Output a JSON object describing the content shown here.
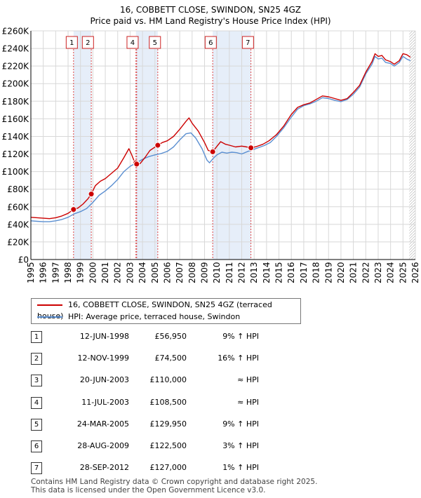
{
  "title": "16, COBBETT CLOSE, SWINDON, SN25 4GZ",
  "subtitle": "Price paid vs. HM Land Registry's House Price Index (HPI)",
  "colors": {
    "property": "#cc0000",
    "hpi": "#5b8fd1",
    "band": "#e6eef9",
    "grid": "#d8d8d8",
    "vline": "#dd4444"
  },
  "chart_data": {
    "type": "line",
    "title": "16, COBBETT CLOSE, SWINDON, SN25 4GZ",
    "subtitle": "Price paid vs. HM Land Registry's House Price Index (HPI)",
    "xlim": [
      1995,
      2026
    ],
    "ylim": [
      0,
      260000
    ],
    "y_ticks": [
      0,
      20000,
      40000,
      60000,
      80000,
      100000,
      120000,
      140000,
      160000,
      180000,
      200000,
      220000,
      240000,
      260000
    ],
    "y_tick_labels": [
      "£0",
      "£20K",
      "£40K",
      "£60K",
      "£80K",
      "£100K",
      "£120K",
      "£140K",
      "£160K",
      "£180K",
      "£200K",
      "£220K",
      "£240K",
      "£260K"
    ],
    "x_ticks": [
      1995,
      1996,
      1997,
      1998,
      1999,
      2000,
      2001,
      2002,
      2003,
      2004,
      2005,
      2006,
      2007,
      2008,
      2009,
      2010,
      2011,
      2012,
      2013,
      2014,
      2015,
      2016,
      2017,
      2018,
      2019,
      2020,
      2021,
      2022,
      2023,
      2024,
      2025,
      2026
    ],
    "x_tick_labels": [
      "1995",
      "1996",
      "1997",
      "1998",
      "1999",
      "2000",
      "2001",
      "2002",
      "2003",
      "2004",
      "2005",
      "2006",
      "2007",
      "2008",
      "2009",
      "2010",
      "2011",
      "2012",
      "2013",
      "2014",
      "2015",
      "2016",
      "2017",
      "2018",
      "2019",
      "2020",
      "2021",
      "2022",
      "2023",
      "2024",
      "2025",
      "2026"
    ],
    "shaded_bands": [
      [
        1998.44,
        1999.87
      ],
      [
        2003.47,
        2005.23
      ],
      [
        2009.66,
        2012.74
      ]
    ],
    "series": [
      {
        "name": "16, COBBETT CLOSE, SWINDON, SN25 4GZ (terraced house)",
        "points": [
          [
            1995.0,
            48000
          ],
          [
            1995.5,
            47500
          ],
          [
            1996.0,
            47000
          ],
          [
            1996.5,
            46500
          ],
          [
            1997.0,
            47500
          ],
          [
            1997.5,
            49500
          ],
          [
            1998.0,
            52500
          ],
          [
            1998.44,
            56950
          ],
          [
            1998.8,
            58500
          ],
          [
            1999.2,
            63000
          ],
          [
            1999.6,
            69000
          ],
          [
            1999.87,
            74500
          ],
          [
            2000.2,
            84000
          ],
          [
            2000.6,
            89000
          ],
          [
            2001.0,
            92000
          ],
          [
            2001.5,
            98000
          ],
          [
            2002.0,
            104000
          ],
          [
            2002.5,
            116000
          ],
          [
            2002.9,
            126000
          ],
          [
            2003.1,
            120000
          ],
          [
            2003.3,
            113000
          ],
          [
            2003.47,
            110000
          ],
          [
            2003.53,
            108500
          ],
          [
            2003.8,
            109000
          ],
          [
            2004.2,
            116000
          ],
          [
            2004.6,
            124000
          ],
          [
            2005.23,
            129950
          ],
          [
            2005.6,
            133000
          ],
          [
            2006.0,
            135000
          ],
          [
            2006.5,
            140000
          ],
          [
            2007.0,
            148000
          ],
          [
            2007.5,
            157000
          ],
          [
            2007.75,
            161000
          ],
          [
            2008.0,
            155000
          ],
          [
            2008.5,
            146000
          ],
          [
            2009.0,
            133000
          ],
          [
            2009.3,
            124000
          ],
          [
            2009.66,
            122500
          ],
          [
            2009.9,
            127000
          ],
          [
            2010.3,
            134000
          ],
          [
            2010.7,
            131000
          ],
          [
            2011.0,
            130000
          ],
          [
            2011.5,
            128000
          ],
          [
            2012.0,
            129000
          ],
          [
            2012.4,
            128000
          ],
          [
            2012.74,
            127000
          ],
          [
            2013.2,
            128500
          ],
          [
            2013.7,
            131000
          ],
          [
            2014.2,
            135000
          ],
          [
            2014.8,
            142000
          ],
          [
            2015.4,
            152000
          ],
          [
            2016.0,
            165000
          ],
          [
            2016.5,
            173000
          ],
          [
            2017.0,
            176000
          ],
          [
            2017.5,
            178000
          ],
          [
            2018.0,
            182000
          ],
          [
            2018.5,
            186000
          ],
          [
            2019.0,
            185000
          ],
          [
            2019.5,
            183000
          ],
          [
            2020.0,
            181000
          ],
          [
            2020.5,
            183000
          ],
          [
            2021.0,
            190000
          ],
          [
            2021.5,
            198000
          ],
          [
            2022.0,
            213000
          ],
          [
            2022.5,
            225000
          ],
          [
            2022.75,
            234000
          ],
          [
            2023.0,
            231000
          ],
          [
            2023.3,
            232000
          ],
          [
            2023.6,
            227000
          ],
          [
            2024.0,
            225000
          ],
          [
            2024.3,
            222000
          ],
          [
            2024.7,
            226000
          ],
          [
            2025.0,
            234000
          ],
          [
            2025.3,
            233000
          ],
          [
            2025.6,
            230000
          ]
        ]
      },
      {
        "name": "HPI: Average price, terraced house, Swindon",
        "points": [
          [
            1995.0,
            44000
          ],
          [
            1995.5,
            43500
          ],
          [
            1996.0,
            43000
          ],
          [
            1996.5,
            43000
          ],
          [
            1997.0,
            44000
          ],
          [
            1997.5,
            45500
          ],
          [
            1998.0,
            48000
          ],
          [
            1998.5,
            52000
          ],
          [
            1999.0,
            54500
          ],
          [
            1999.5,
            58000
          ],
          [
            2000.0,
            65000
          ],
          [
            2000.5,
            73000
          ],
          [
            2001.0,
            78000
          ],
          [
            2001.5,
            84000
          ],
          [
            2002.0,
            91000
          ],
          [
            2002.5,
            100000
          ],
          [
            2003.0,
            106000
          ],
          [
            2003.5,
            110000
          ],
          [
            2004.0,
            114000
          ],
          [
            2004.5,
            117000
          ],
          [
            2005.0,
            119000
          ],
          [
            2005.5,
            120500
          ],
          [
            2006.0,
            123000
          ],
          [
            2006.5,
            128000
          ],
          [
            2007.0,
            136000
          ],
          [
            2007.5,
            143000
          ],
          [
            2007.9,
            144000
          ],
          [
            2008.3,
            138000
          ],
          [
            2008.8,
            126000
          ],
          [
            2009.2,
            113000
          ],
          [
            2009.4,
            110000
          ],
          [
            2009.7,
            115000
          ],
          [
            2010.0,
            119000
          ],
          [
            2010.4,
            122000
          ],
          [
            2010.8,
            121000
          ],
          [
            2011.2,
            122000
          ],
          [
            2011.6,
            121500
          ],
          [
            2012.0,
            120000
          ],
          [
            2012.5,
            123000
          ],
          [
            2012.9,
            125000
          ],
          [
            2013.3,
            127000
          ],
          [
            2013.8,
            129500
          ],
          [
            2014.3,
            133000
          ],
          [
            2014.8,
            140000
          ],
          [
            2015.4,
            150000
          ],
          [
            2016.0,
            162000
          ],
          [
            2016.5,
            171000
          ],
          [
            2017.0,
            175000
          ],
          [
            2017.5,
            177000
          ],
          [
            2018.0,
            180000
          ],
          [
            2018.5,
            184000
          ],
          [
            2019.0,
            183000
          ],
          [
            2019.5,
            181000
          ],
          [
            2020.0,
            179500
          ],
          [
            2020.5,
            182000
          ],
          [
            2021.0,
            188000
          ],
          [
            2021.5,
            196000
          ],
          [
            2022.0,
            211000
          ],
          [
            2022.5,
            222000
          ],
          [
            2022.75,
            231000
          ],
          [
            2023.0,
            228000
          ],
          [
            2023.3,
            229000
          ],
          [
            2023.6,
            224000
          ],
          [
            2024.0,
            223000
          ],
          [
            2024.3,
            220000
          ],
          [
            2024.7,
            224000
          ],
          [
            2025.0,
            231000
          ],
          [
            2025.3,
            228000
          ],
          [
            2025.6,
            226000
          ]
        ]
      }
    ],
    "sales": [
      {
        "label": "1",
        "x": 1998.44,
        "price": 56950
      },
      {
        "label": "2",
        "x": 1999.87,
        "price": 74500
      },
      {
        "label": "3",
        "x": 2003.47,
        "price": 110000
      },
      {
        "label": "4",
        "x": 2003.53,
        "price": 108500
      },
      {
        "label": "5",
        "x": 2005.23,
        "price": 129950
      },
      {
        "label": "6",
        "x": 2009.66,
        "price": 122500
      },
      {
        "label": "7",
        "x": 2012.74,
        "price": 127000
      }
    ],
    "chart_boxes": [
      {
        "label": "1",
        "x": 1998.3
      },
      {
        "label": "2",
        "x": 1999.6
      },
      {
        "label": "4",
        "x": 2003.2
      },
      {
        "label": "5",
        "x": 2005.0
      },
      {
        "label": "6",
        "x": 2009.5
      },
      {
        "label": "7",
        "x": 2012.5
      }
    ]
  },
  "legend": {
    "property_label": "16, COBBETT CLOSE, SWINDON, SN25 4GZ (terraced house)",
    "hpi_label": "HPI: Average price, terraced house, Swindon"
  },
  "sales_table": [
    {
      "num": "1",
      "date": "12-JUN-1998",
      "price": "£56,950",
      "hpi": "9% ↑ HPI"
    },
    {
      "num": "2",
      "date": "12-NOV-1999",
      "price": "£74,500",
      "hpi": "16% ↑ HPI"
    },
    {
      "num": "3",
      "date": "20-JUN-2003",
      "price": "£110,000",
      "hpi": "≈ HPI"
    },
    {
      "num": "4",
      "date": "11-JUL-2003",
      "price": "£108,500",
      "hpi": "≈ HPI"
    },
    {
      "num": "5",
      "date": "24-MAR-2005",
      "price": "£129,950",
      "hpi": "9% ↑ HPI"
    },
    {
      "num": "6",
      "date": "28-AUG-2009",
      "price": "£122,500",
      "hpi": "3% ↑ HPI"
    },
    {
      "num": "7",
      "date": "28-SEP-2012",
      "price": "£127,000",
      "hpi": "1% ↑ HPI"
    }
  ],
  "footer": {
    "line1": "Contains HM Land Registry data © Crown copyright and database right 2025.",
    "line2": "This data is licensed under the Open Government Licence v3.0."
  }
}
